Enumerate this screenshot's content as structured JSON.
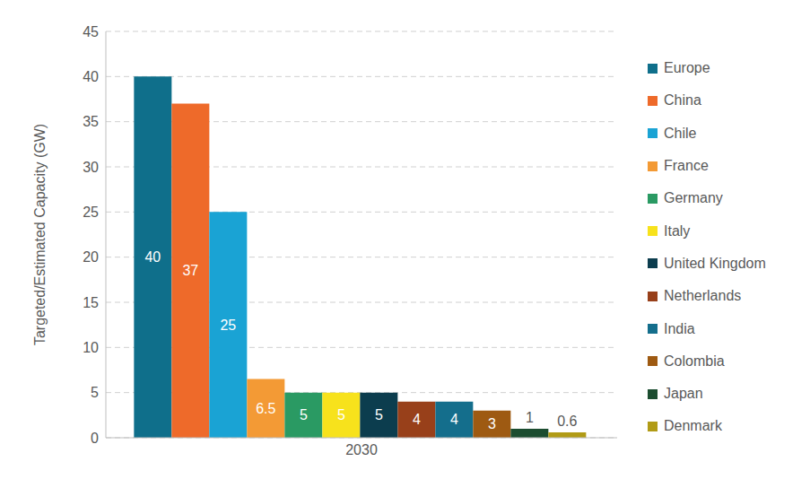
{
  "chart_data": {
    "type": "bar",
    "y_label": "Targeted/Estimated Capacity (GW)",
    "categories": [
      "2030"
    ],
    "series": [
      {
        "name": "Europe",
        "color": "#0f6f8b",
        "values": [
          40
        ]
      },
      {
        "name": "China",
        "color": "#ee6a2a",
        "values": [
          37
        ]
      },
      {
        "name": "Chile",
        "color": "#1aa3d4",
        "values": [
          25
        ]
      },
      {
        "name": "France",
        "color": "#f39a35",
        "values": [
          6.5
        ]
      },
      {
        "name": "Germany",
        "color": "#2a9a63",
        "values": [
          5
        ]
      },
      {
        "name": "Italy",
        "color": "#f7e21c",
        "values": [
          5
        ]
      },
      {
        "name": "United Kingdom",
        "color": "#0c3d4e",
        "values": [
          5
        ]
      },
      {
        "name": "Netherlands",
        "color": "#98401a",
        "values": [
          4
        ]
      },
      {
        "name": "India",
        "color": "#146e8c",
        "values": [
          4
        ]
      },
      {
        "name": "Colombia",
        "color": "#9e5a12",
        "values": [
          3
        ]
      },
      {
        "name": "Japan",
        "color": "#1c4d30",
        "values": [
          1
        ]
      },
      {
        "name": "Denmark",
        "color": "#b19b16",
        "values": [
          0.6
        ]
      }
    ],
    "ylim": [
      0,
      45
    ],
    "yticks": [
      0,
      5,
      10,
      15,
      20,
      25,
      30,
      35,
      40,
      45
    ],
    "grid": true,
    "data_labels": true,
    "legend": "right"
  }
}
